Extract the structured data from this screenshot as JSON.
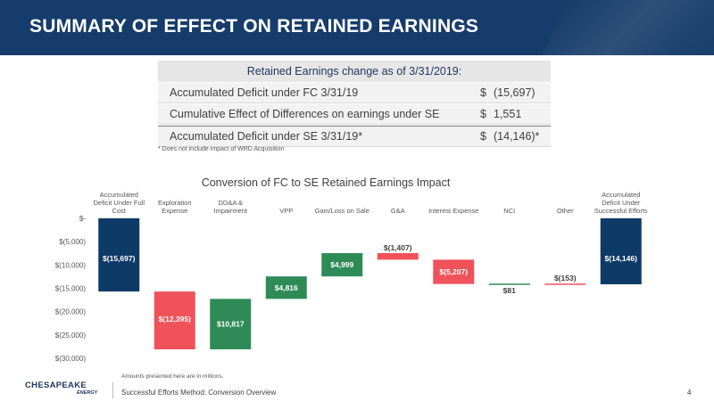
{
  "header": {
    "title": "SUMMARY OF EFFECT ON RETAINED EARNINGS"
  },
  "table": {
    "heading": "Retained Earnings change as of 3/31/2019:",
    "rows": [
      {
        "label": "Accumulated Deficit under FC 3/31/19",
        "currency": "$",
        "amount": "(15,697)"
      },
      {
        "label": "Cumulative Effect of Differences on earnings under SE",
        "currency": "$",
        "amount": "1,551"
      },
      {
        "label": "Accumulated Deficit under SE 3/31/19*",
        "currency": "$",
        "amount": "(14,146)*"
      }
    ],
    "footnote": "* Does not include impact of WRD Acquisition"
  },
  "chart_data": {
    "type": "bar",
    "subtype": "waterfall",
    "title": "Conversion of FC to SE Retained Earnings Impact",
    "ylim": [
      -30000,
      0
    ],
    "yticks": [
      0,
      -5000,
      -10000,
      -15000,
      -20000,
      -25000,
      -30000
    ],
    "ytick_labels": [
      "$-",
      "$(5,000)",
      "$(10,000)",
      "$(15,000)",
      "$(20,000)",
      "$(25,000)",
      "$(30,000)"
    ],
    "categories": [
      [
        "Accumulated",
        "Deficit Under Full",
        "Cost"
      ],
      [
        "Exploration",
        "Expense"
      ],
      [
        "DD&A &",
        "Impairment"
      ],
      [
        "VPP"
      ],
      [
        "Gain/Loss on Sale"
      ],
      [
        "G&A"
      ],
      [
        "Interest Expense"
      ],
      [
        "NCI"
      ],
      [
        "Other"
      ],
      [
        "Accumulated",
        "Deficit Under",
        "Successful Efforts"
      ]
    ],
    "values": [
      -15697,
      -12395,
      10817,
      4816,
      4999,
      -1407,
      -5207,
      81,
      -153,
      -14146
    ],
    "value_labels": [
      "$(15,697)",
      "$(12,395)",
      "$10,817",
      "$4,816",
      "$4,999",
      "$(1,407)",
      "$(5,207)",
      "$81",
      "$(153)",
      "$(14,146)"
    ],
    "bar_kind": [
      "total",
      "delta",
      "delta",
      "delta",
      "delta",
      "delta",
      "delta",
      "delta",
      "delta",
      "total"
    ],
    "grid": false,
    "colors": {
      "total": "#0e3a68",
      "increase": "#2e8b57",
      "decrease": "#f0525a"
    }
  },
  "footer": {
    "note": "Amounts presented here are in millions.",
    "text": "Successful Efforts Method: Conversion Overview",
    "page": "4",
    "logo_text": "CHESAPEAKE",
    "logo_sub": "ENERGY"
  }
}
